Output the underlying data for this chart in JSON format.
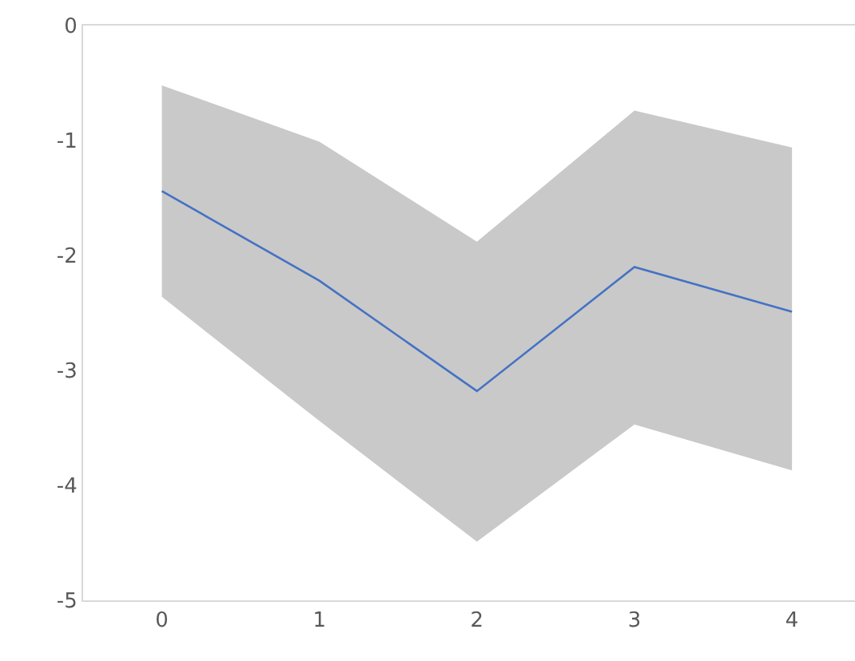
{
  "chart_data": {
    "type": "line",
    "x": [
      0,
      1,
      2,
      3,
      4
    ],
    "series": [
      {
        "color": "#4472c4",
        "values": [
          -1.44,
          -2.22,
          -3.18,
          -2.1,
          -2.49
        ],
        "lower": [
          -2.36,
          -3.44,
          -4.49,
          -3.47,
          -3.87
        ],
        "upper": [
          -0.52,
          -1.01,
          -1.88,
          -0.74,
          -1.06
        ]
      }
    ],
    "xlim": [
      -0.5,
      4.4
    ],
    "xticks": [
      0,
      1,
      2,
      3,
      4
    ],
    "ylim": [
      -5,
      0
    ],
    "yticks": [
      -5,
      -4,
      -3,
      -2,
      -1,
      0
    ],
    "marker": "none",
    "line_style": "solid"
  }
}
